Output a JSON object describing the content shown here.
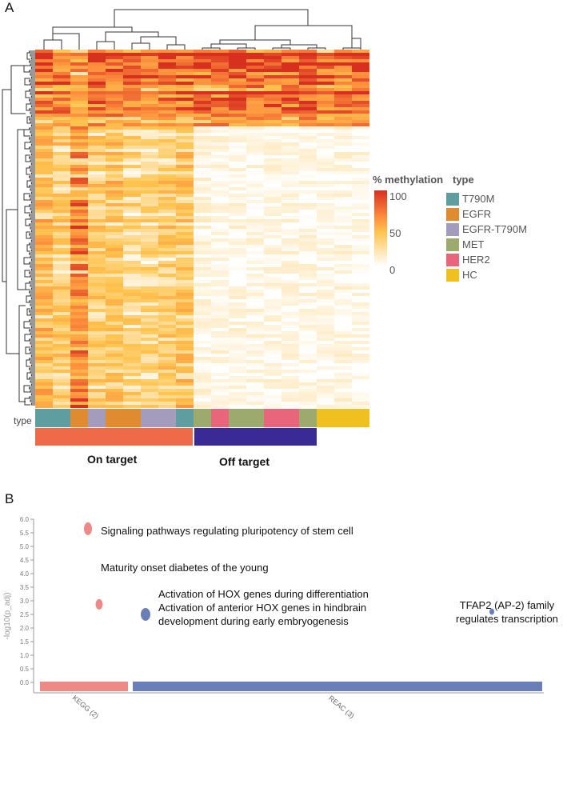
{
  "panel_a": {
    "label": "A",
    "row_label": "type",
    "legend": {
      "title": "% methylation",
      "ticks": [
        "100",
        "50",
        "0"
      ],
      "type_title": "type",
      "types": [
        {
          "name": "T790M",
          "color": "#5f9ea0"
        },
        {
          "name": "EGFR",
          "color": "#e08b30"
        },
        {
          "name": "EGFR-T790M",
          "color": "#a49cbc"
        },
        {
          "name": "MET",
          "color": "#9caa6e"
        },
        {
          "name": "HER2",
          "color": "#e9657a"
        },
        {
          "name": "HC",
          "color": "#f0c020"
        }
      ]
    },
    "groups": [
      {
        "label": "On target",
        "color": "#ef6a46"
      },
      {
        "label": "Off target",
        "color": "#3a2a96"
      }
    ],
    "chart_data": {
      "type": "heatmap",
      "value_range": [
        0,
        100
      ],
      "column_types": [
        "T790M",
        "T790M",
        "EGFR",
        "EGFR-T790M",
        "EGFR",
        "EGFR",
        "EGFR-T790M",
        "EGFR-T790M",
        "T790M",
        "MET",
        "HER2",
        "MET",
        "MET",
        "HER2",
        "HER2",
        "MET",
        "HC",
        "HC",
        "HC"
      ],
      "column_groups": [
        "On target",
        "On target",
        "On target",
        "On target",
        "On target",
        "On target",
        "On target",
        "On target",
        "On target",
        "Off target",
        "Off target",
        "Off target",
        "Off target",
        "Off target",
        "Off target",
        "Off target",
        "",
        "",
        ""
      ],
      "column_mean_top": [
        75,
        70,
        55,
        80,
        75,
        70,
        65,
        70,
        80,
        85,
        85,
        85,
        85,
        85,
        80,
        85,
        75,
        80,
        80
      ],
      "column_mean_rest": [
        35,
        25,
        55,
        25,
        30,
        20,
        20,
        25,
        30,
        5,
        4,
        4,
        4,
        4,
        4,
        4,
        4,
        4,
        3
      ]
    }
  },
  "panel_b": {
    "label": "B",
    "chart_data": {
      "type": "scatter",
      "ylabel": "-log10(p_adj)",
      "ylim": [
        0,
        6
      ],
      "yticks": [
        "0.0",
        "0.5",
        "1.0",
        "1.5",
        "2.0",
        "2.5",
        "3.0",
        "3.5",
        "4.0",
        "4.5",
        "5.0",
        "5.5",
        "6.0"
      ],
      "sources": [
        {
          "name": "KEGG (2)",
          "color": "#ee8a86"
        },
        {
          "name": "REAC (3)",
          "color": "#6a7fb8"
        }
      ],
      "points": [
        {
          "source": "KEGG (2)",
          "y": 5.65,
          "pos": 0.12,
          "lines": [
            "Signaling pathways regulating pluripotency of stem cell"
          ]
        },
        {
          "source": "KEGG (2)",
          "y": 2.87,
          "pos": 0.15,
          "lines": [
            "Maturity onset diabetes of the young"
          ]
        },
        {
          "source": "REAC (3)",
          "y": 2.5,
          "pos": 0.26,
          "lines": [
            "Activation of HOX genes during differentiation",
            "Activation of anterior HOX genes in hindbrain",
            "development during early embryogenesis"
          ]
        },
        {
          "source": "REAC (3)",
          "y": 2.6,
          "pos": 0.93,
          "lines": [
            "TFAP2 (AP-2) family",
            "regulates transcription"
          ]
        }
      ]
    }
  }
}
